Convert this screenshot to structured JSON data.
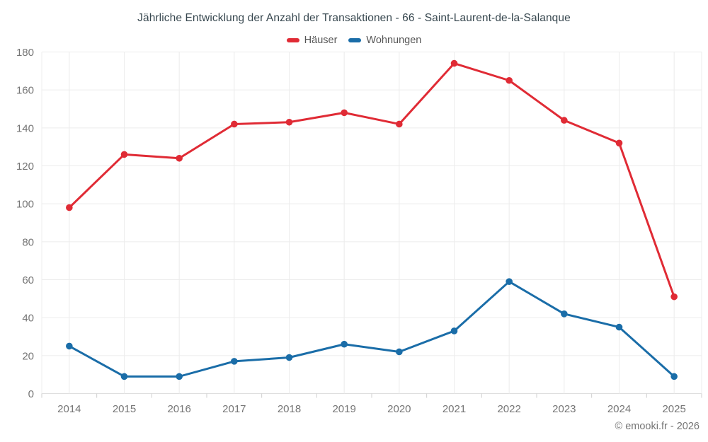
{
  "chart_data": {
    "type": "line",
    "title": "Jährliche Entwicklung der Anzahl der Transaktionen - 66 - Saint-Laurent-de-la-Salanque",
    "categories": [
      "2014",
      "2015",
      "2016",
      "2017",
      "2018",
      "2019",
      "2020",
      "2021",
      "2022",
      "2023",
      "2024",
      "2025"
    ],
    "series": [
      {
        "name": "Häuser",
        "color": "#e02b35",
        "values": [
          98,
          126,
          124,
          142,
          143,
          148,
          142,
          174,
          165,
          144,
          132,
          51
        ]
      },
      {
        "name": "Wohnungen",
        "color": "#1a6da8",
        "values": [
          25,
          9,
          9,
          17,
          19,
          26,
          22,
          33,
          59,
          42,
          35,
          9
        ]
      }
    ],
    "xlabel": "",
    "ylabel": "",
    "ylim": [
      0,
      180
    ],
    "ytick_step": 20,
    "grid": true,
    "legend_position": "top",
    "axis_text_color": "#757575",
    "gridline_color": "#ececec",
    "axis_line_color": "#dedede",
    "tick_color": "#cfcfcf"
  },
  "footer": {
    "credit": "© emooki.fr - 2026"
  }
}
